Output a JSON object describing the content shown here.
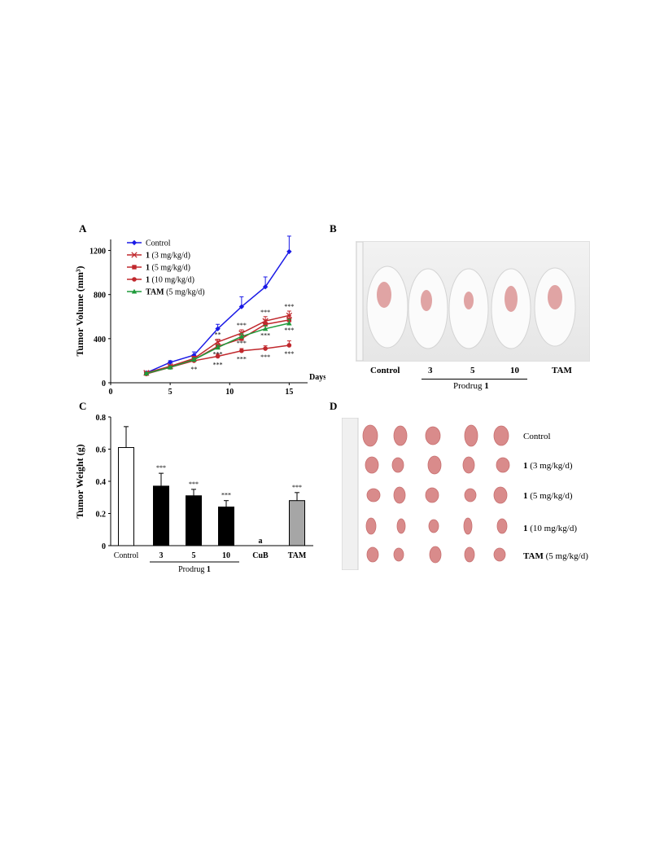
{
  "chart_data": [
    {
      "panel": "A",
      "type": "line",
      "ylabel": "Tumor Volume (mm³)",
      "xlabel": "Days",
      "xlim": [
        0,
        16
      ],
      "ylim": [
        0,
        1300
      ],
      "xticks": [
        0,
        5,
        10,
        15
      ],
      "yticks": [
        0,
        400,
        800,
        1200
      ],
      "x": [
        3,
        5,
        7,
        9,
        11,
        13,
        15
      ],
      "series": [
        {
          "name": "Control",
          "name_bold": "",
          "name_rest": "Control",
          "color": "#1a1ae6",
          "marker": "diamond",
          "values": [
            90,
            185,
            250,
            490,
            690,
            870,
            1190
          ],
          "errors": [
            10,
            15,
            30,
            40,
            90,
            90,
            140
          ],
          "sig": [
            "",
            "",
            "",
            "",
            "",
            "",
            ""
          ]
        },
        {
          "name": "1 (3 mg/kg/d)",
          "name_bold": "1",
          "name_rest": " (3 mg/kg/d)",
          "color": "#c0282d",
          "marker": "x",
          "values": [
            90,
            150,
            220,
            370,
            450,
            560,
            610
          ],
          "errors": [
            8,
            12,
            20,
            25,
            30,
            40,
            40
          ],
          "sig": [
            "",
            "",
            "",
            "**",
            "***",
            "***",
            "***"
          ]
        },
        {
          "name": "1 (5 mg/kg/d)",
          "name_bold": "1",
          "name_rest": " (5 mg/kg/d)",
          "color": "#c0282d",
          "marker": "square",
          "values": [
            85,
            145,
            210,
            330,
            400,
            530,
            570
          ],
          "errors": [
            8,
            12,
            20,
            25,
            30,
            40,
            40
          ],
          "sig": [
            "",
            "",
            "",
            "",
            "",
            "",
            ""
          ]
        },
        {
          "name": "1 (10 mg/kg/d)",
          "name_bold": "1",
          "name_rest": " (10 mg/kg/d)",
          "color": "#c0282d",
          "marker": "circle",
          "values": [
            80,
            140,
            200,
            240,
            290,
            310,
            340
          ],
          "errors": [
            8,
            10,
            15,
            20,
            20,
            25,
            40
          ],
          "sig": [
            "",
            "",
            "**",
            "***",
            "***",
            "***",
            "***"
          ]
        },
        {
          "name": "TAM (5 mg/kg/d)",
          "name_bold": "TAM",
          "name_rest": " (5 mg/kg/d)",
          "color": "#1e9a3a",
          "marker": "triangle",
          "values": [
            85,
            140,
            210,
            320,
            420,
            490,
            540
          ],
          "errors": [
            8,
            10,
            15,
            20,
            25,
            30,
            35
          ],
          "sig": [
            "",
            "",
            "",
            "***",
            "***",
            "***",
            "***"
          ]
        }
      ]
    },
    {
      "panel": "C",
      "type": "bar",
      "ylabel": "Tumor Weight (g)",
      "ylim": [
        0,
        0.8
      ],
      "yticks": [
        "0",
        "0.2",
        "0.4",
        "0.6",
        "0.8"
      ],
      "categories": [
        "Control",
        "3",
        "5",
        "10",
        "CuB",
        "TAM"
      ],
      "values": [
        0.61,
        0.37,
        0.31,
        0.24,
        0,
        0.28
      ],
      "errors": [
        0.13,
        0.08,
        0.04,
        0.04,
        0,
        0.05
      ],
      "labels": [
        "",
        "***",
        "***",
        "***",
        "a",
        "***"
      ],
      "colors": [
        "#ffffff",
        "#000000",
        "#000000",
        "#000000",
        "#000000",
        "#a6a6a6"
      ],
      "group_label": "Prodrug 1",
      "group_label_plain": "Prodrug ",
      "group_label_bold": "1"
    }
  ],
  "panels": {
    "a": "A",
    "b": "B",
    "c": "C",
    "d": "D"
  },
  "panel_b": {
    "labels": [
      "Control",
      "3",
      "5",
      "10",
      "TAM"
    ],
    "group_label_plain": "Prodrug ",
    "group_label_bold": "1"
  },
  "panel_d": {
    "rows": [
      {
        "bold": "",
        "rest": "Control"
      },
      {
        "bold": "1",
        "rest": " (3 mg/kg/d)"
      },
      {
        "bold": "1",
        "rest": " (5 mg/kg/d)"
      },
      {
        "bold": "1",
        "rest": " (10 mg/kg/d)"
      },
      {
        "bold": "TAM",
        "rest": " (5 mg/kg/d)"
      }
    ]
  }
}
